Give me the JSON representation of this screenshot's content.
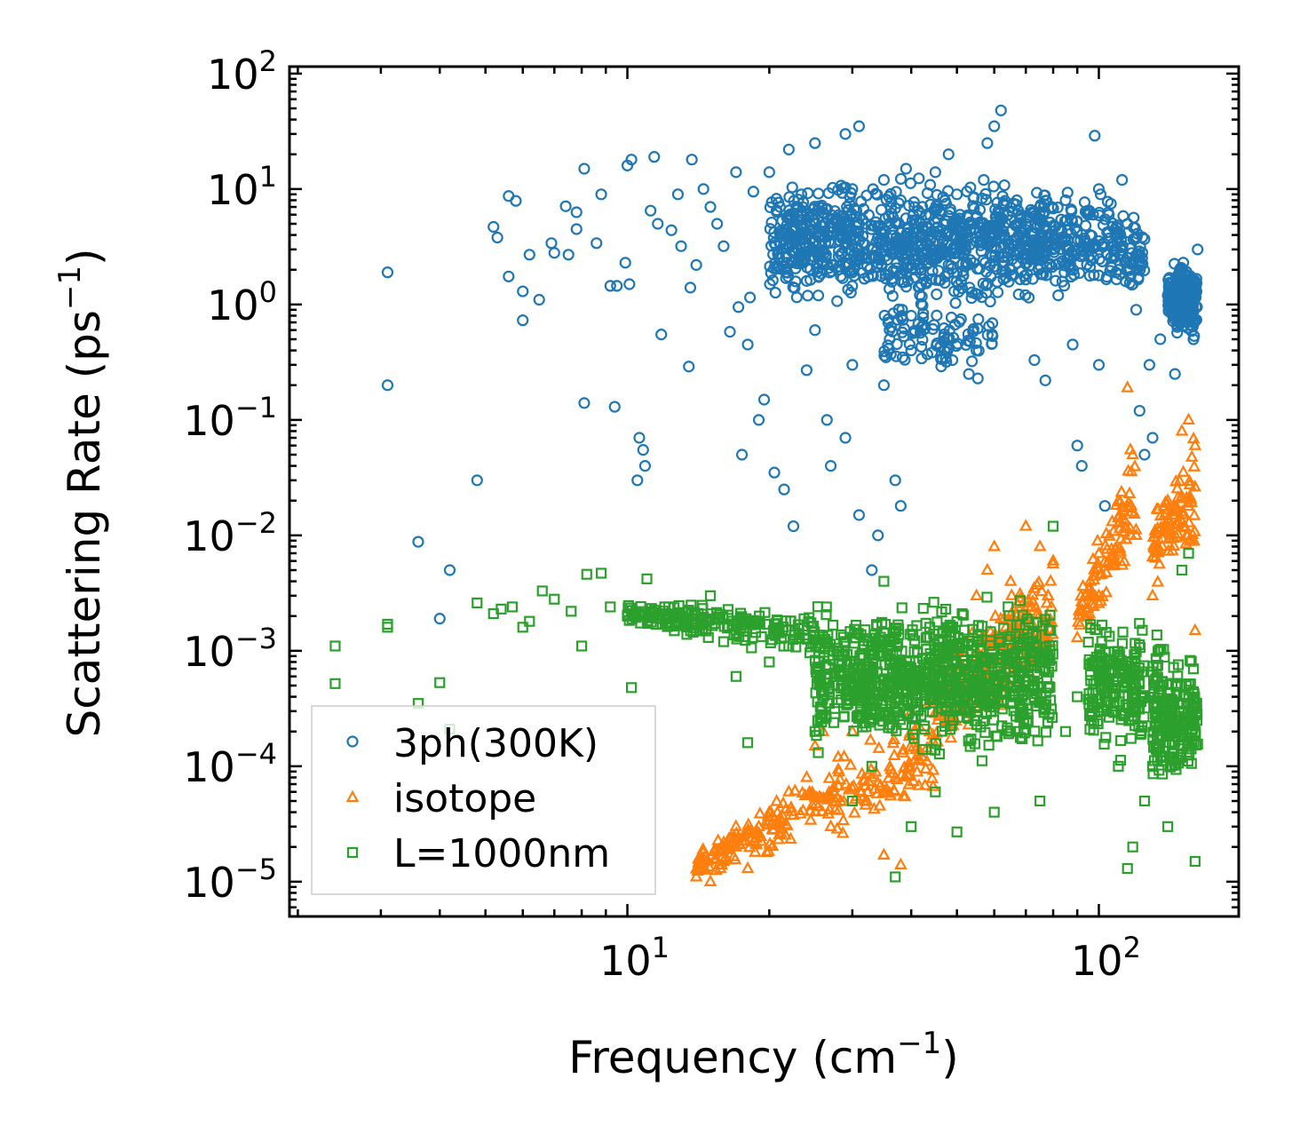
{
  "chart_data": {
    "type": "scatter",
    "xlabel": "Frequency (cm",
    "xlabel_sup": "−1",
    "xlabel_end": ")",
    "ylabel": "Scattering Rate (ps",
    "ylabel_sup": "−1",
    "ylabel_end": ")",
    "xscale": "log",
    "yscale": "log",
    "xlim": [
      1.92,
      198
    ],
    "ylim": [
      5e-06,
      115
    ],
    "xticks": [
      {
        "value": 10,
        "base": "10",
        "exp": "1"
      },
      {
        "value": 100,
        "base": "10",
        "exp": "2"
      }
    ],
    "yticks": [
      {
        "value": 100,
        "base": "10",
        "exp": "2"
      },
      {
        "value": 10,
        "base": "10",
        "exp": "1"
      },
      {
        "value": 1,
        "base": "10",
        "exp": "0"
      },
      {
        "value": 0.1,
        "base": "10",
        "exp": "−1"
      },
      {
        "value": 0.01,
        "base": "10",
        "exp": "−2"
      },
      {
        "value": 0.001,
        "base": "10",
        "exp": "−3"
      },
      {
        "value": 0.0001,
        "base": "10",
        "exp": "−4"
      },
      {
        "value": 1e-05,
        "base": "10",
        "exp": "−5"
      }
    ],
    "legend_position": "lower-left",
    "series": [
      {
        "name": "3ph(300K)",
        "marker": "circle",
        "color": "#1f77b4",
        "points": [
          [
            3.1,
            1.9
          ],
          [
            3.1,
            0.2
          ],
          [
            3.6,
            0.0088
          ],
          [
            4.0,
            0.0019
          ],
          [
            4.2,
            0.005
          ],
          [
            4.8,
            0.03
          ],
          [
            5.2,
            4.7
          ],
          [
            5.3,
            3.8
          ],
          [
            5.6,
            1.75
          ],
          [
            5.6,
            8.7
          ],
          [
            5.8,
            7.9
          ],
          [
            6.0,
            1.3
          ],
          [
            6.0,
            0.73
          ],
          [
            6.2,
            2.7
          ],
          [
            6.5,
            1.1
          ],
          [
            6.9,
            3.4
          ],
          [
            7.0,
            2.8
          ],
          [
            7.4,
            7.1
          ],
          [
            7.5,
            2.7
          ],
          [
            7.8,
            6.3
          ],
          [
            7.8,
            4.5
          ],
          [
            8.1,
            0.14
          ],
          [
            8.1,
            15
          ],
          [
            8.6,
            3.4
          ],
          [
            8.8,
            9.0
          ],
          [
            9.2,
            1.45
          ],
          [
            9.4,
            0.13
          ],
          [
            9.5,
            1.45
          ],
          [
            9.9,
            2.3
          ],
          [
            10.0,
            16
          ],
          [
            10.1,
            1.5
          ],
          [
            10.2,
            18
          ],
          [
            10.5,
            0.03
          ],
          [
            10.6,
            0.07
          ],
          [
            10.8,
            0.055
          ],
          [
            10.9,
            0.04
          ],
          [
            11.2,
            6.5
          ],
          [
            11.4,
            19
          ],
          [
            11.6,
            5.0
          ],
          [
            11.8,
            0.55
          ],
          [
            12.4,
            4.4
          ],
          [
            12.8,
            9
          ],
          [
            13.0,
            3.2
          ],
          [
            13.5,
            0.29
          ],
          [
            13.6,
            1.4
          ],
          [
            13.7,
            18
          ],
          [
            14,
            2.2
          ],
          [
            14.5,
            10
          ],
          [
            15,
            7
          ],
          [
            15.5,
            5
          ],
          [
            16,
            3.2
          ],
          [
            16.5,
            0.58
          ],
          [
            17,
            14
          ],
          [
            17.2,
            0.95
          ],
          [
            17.5,
            0.05
          ],
          [
            18,
            0.45
          ],
          [
            18.2,
            1.15
          ],
          [
            18.5,
            9.5
          ],
          [
            19,
            0.1
          ],
          [
            19.5,
            0.15
          ],
          [
            20,
            14
          ],
          [
            20.5,
            0.035
          ],
          [
            21,
            2.5
          ],
          [
            21.5,
            0.025
          ],
          [
            22,
            22
          ],
          [
            22.5,
            0.012
          ],
          [
            23,
            7
          ],
          [
            24,
            0.27
          ],
          [
            24,
            1.6
          ],
          [
            25,
            0.6
          ],
          [
            25,
            25
          ],
          [
            26,
            4
          ],
          [
            26.5,
            0.1
          ],
          [
            27,
            0.04
          ],
          [
            28,
            2
          ],
          [
            29,
            30
          ],
          [
            29,
            0.07
          ],
          [
            30,
            0.3
          ],
          [
            30,
            10
          ],
          [
            31,
            35
          ],
          [
            31,
            0.015
          ],
          [
            32,
            5
          ],
          [
            33,
            0.005
          ],
          [
            33,
            1.8
          ],
          [
            34,
            0.01
          ],
          [
            35,
            12
          ],
          [
            35,
            0.2
          ],
          [
            36,
            0.5
          ],
          [
            37,
            3
          ],
          [
            37,
            0.03
          ],
          [
            38,
            0.018
          ],
          [
            38,
            8
          ],
          [
            39,
            15
          ],
          [
            40,
            0.4
          ],
          [
            40,
            0.8
          ],
          [
            42,
            1.5
          ],
          [
            43,
            6
          ],
          [
            45,
            14
          ],
          [
            46,
            4
          ],
          [
            48,
            20
          ],
          [
            50,
            9
          ],
          [
            52,
            3
          ],
          [
            53,
            0.25
          ],
          [
            55,
            0.4
          ],
          [
            57,
            12
          ],
          [
            58,
            25
          ],
          [
            60,
            35
          ],
          [
            62,
            48
          ],
          [
            63,
            4
          ],
          [
            65,
            2
          ],
          [
            67,
            8
          ],
          [
            70,
            5
          ],
          [
            73,
            0.33
          ],
          [
            75,
            7
          ],
          [
            77,
            0.22
          ],
          [
            80,
            3
          ],
          [
            82,
            1.2
          ],
          [
            85,
            8
          ],
          [
            88,
            0.45
          ],
          [
            90,
            0.06
          ],
          [
            92,
            0.04
          ],
          [
            95,
            6
          ],
          [
            98,
            29
          ],
          [
            100,
            0.3
          ],
          [
            100,
            10
          ],
          [
            103,
            0.018
          ],
          [
            105,
            6
          ],
          [
            108,
            3
          ],
          [
            110,
            2
          ],
          [
            112,
            12
          ],
          [
            115,
            5
          ],
          [
            118,
            1.5
          ],
          [
            120,
            0.9
          ],
          [
            122,
            0.12
          ],
          [
            125,
            0.05
          ],
          [
            128,
            0.3
          ],
          [
            130,
            0.07
          ],
          [
            135,
            0.5
          ],
          [
            140,
            1.2
          ],
          [
            145,
            0.25
          ],
          [
            150,
            2
          ],
          [
            155,
            0.8
          ],
          [
            160,
            1.5
          ],
          [
            162,
            3
          ]
        ],
        "dense_bands": [
          {
            "x": [
              20,
              80
            ],
            "ylo": [
              0.8,
              0.8
            ],
            "yhi": [
              15,
              15
            ],
            "n": 900
          },
          {
            "x": [
              80,
              125
            ],
            "ylo": [
              1,
              1
            ],
            "yhi": [
              15,
              8
            ],
            "n": 200
          },
          {
            "x": [
              140,
              162
            ],
            "ylo": [
              0.4,
              0.4
            ],
            "yhi": [
              3,
              3
            ],
            "n": 200
          },
          {
            "x": [
              35,
              60
            ],
            "ylo": [
              0.2,
              0.2
            ],
            "yhi": [
              1.5,
              1.5
            ],
            "n": 100
          }
        ]
      },
      {
        "name": "isotope",
        "marker": "triangle",
        "color": "#ff7f0e",
        "points": [
          [
            14,
            1.1e-05
          ],
          [
            15,
            1e-05
          ],
          [
            16,
            1.5e-05
          ],
          [
            17,
            2e-05
          ],
          [
            18,
            1.3e-05
          ],
          [
            19,
            3e-05
          ],
          [
            20,
            4e-05
          ],
          [
            22,
            6e-05
          ],
          [
            24,
            8e-05
          ],
          [
            25,
            0.00015
          ],
          [
            26,
            0.0002
          ],
          [
            27,
            3e-05
          ],
          [
            28,
            0.00012
          ],
          [
            30,
            0.0002
          ],
          [
            32,
            5e-05
          ],
          [
            35,
            1.7e-05
          ],
          [
            38,
            1.4e-05
          ],
          [
            40,
            0.0003
          ],
          [
            45,
            0.0005
          ],
          [
            50,
            0.001
          ],
          [
            55,
            0.003
          ],
          [
            58,
            0.005
          ],
          [
            60,
            0.008
          ],
          [
            65,
            0.004
          ],
          [
            70,
            0.012
          ],
          [
            75,
            0.008
          ],
          [
            80,
            0.006
          ],
          [
            90,
            0.0013
          ],
          [
            100,
            0.003
          ],
          [
            105,
            0.006
          ],
          [
            110,
            0.02
          ],
          [
            115,
            0.19
          ],
          [
            118,
            0.05
          ],
          [
            120,
            0.01
          ],
          [
            130,
            0.003
          ],
          [
            140,
            0.02
          ],
          [
            150,
            0.08
          ],
          [
            155,
            0.1
          ],
          [
            160,
            0.06
          ],
          [
            160,
            0.0015
          ]
        ],
        "dense_bands": [
          {
            "x": [
              14,
              45
            ],
            "ylo": [
              1e-05,
              4e-05
            ],
            "yhi": [
              2e-05,
              0.0005
            ],
            "n": 250
          },
          {
            "x": [
              45,
              80
            ],
            "ylo": [
              0.0001,
              0.0005
            ],
            "yhi": [
              0.001,
              0.01
            ],
            "n": 250
          },
          {
            "x": [
              90,
              120
            ],
            "ylo": [
              0.001,
              0.005
            ],
            "yhi": [
              0.003,
              0.1
            ],
            "n": 100
          },
          {
            "x": [
              130,
              160
            ],
            "ylo": [
              0.003,
              0.005
            ],
            "yhi": [
              0.02,
              0.1
            ],
            "n": 100
          }
        ]
      },
      {
        "name": "L=1000nm",
        "marker": "square",
        "color": "#2ca02c",
        "points": [
          [
            2.4,
            0.0011
          ],
          [
            2.4,
            0.00052
          ],
          [
            3.1,
            0.0017
          ],
          [
            3.1,
            0.0016
          ],
          [
            3.6,
            0.00035
          ],
          [
            4.0,
            0.00053
          ],
          [
            4.2,
            0.00021
          ],
          [
            4.8,
            0.0026
          ],
          [
            5.2,
            0.0021
          ],
          [
            5.4,
            0.0023
          ],
          [
            5.7,
            0.0024
          ],
          [
            6.0,
            0.0016
          ],
          [
            6.2,
            0.0018
          ],
          [
            6.6,
            0.0033
          ],
          [
            7.0,
            0.0028
          ],
          [
            7.6,
            0.0022
          ],
          [
            8.0,
            0.0011
          ],
          [
            8.2,
            0.0046
          ],
          [
            8.8,
            0.0047
          ],
          [
            9.2,
            0.0024
          ],
          [
            10,
            0.002
          ],
          [
            10.2,
            0.00048
          ],
          [
            11,
            0.0042
          ],
          [
            12,
            0.0024
          ],
          [
            13,
            0.002
          ],
          [
            14,
            0.0015
          ],
          [
            15,
            0.003
          ],
          [
            16,
            0.0012
          ],
          [
            17,
            0.0006
          ],
          [
            18,
            0.00016
          ],
          [
            19,
            0.0018
          ],
          [
            20,
            0.0008
          ],
          [
            22,
            0.0011
          ],
          [
            25,
            0.0002
          ],
          [
            28,
            0.0005
          ],
          [
            30,
            5e-05
          ],
          [
            33,
            0.0001
          ],
          [
            35,
            0.004
          ],
          [
            37,
            1.1e-05
          ],
          [
            40,
            3e-05
          ],
          [
            45,
            6e-05
          ],
          [
            50,
            2.7e-05
          ],
          [
            55,
            0.0003
          ],
          [
            60,
            4e-05
          ],
          [
            65,
            0.0002
          ],
          [
            70,
            0.0005
          ],
          [
            75,
            5e-05
          ],
          [
            80,
            0.012
          ],
          [
            85,
            0.0002
          ],
          [
            90,
            0.0004
          ],
          [
            100,
            0.0003
          ],
          [
            110,
            0.0001
          ],
          [
            115,
            1.3e-05
          ],
          [
            118,
            2e-05
          ],
          [
            125,
            5e-05
          ],
          [
            130,
            0.0001
          ],
          [
            140,
            3e-05
          ],
          [
            150,
            0.005
          ],
          [
            155,
            0.007
          ],
          [
            160,
            1.5e-05
          ],
          [
            160,
            0.0002
          ]
        ],
        "dense_bands": [
          {
            "x": [
              10,
              25
            ],
            "ylo": [
              0.0015,
              0.0008
            ],
            "yhi": [
              0.003,
              0.0025
            ],
            "n": 200
          },
          {
            "x": [
              25,
              80
            ],
            "ylo": [
              0.0001,
              0.0001
            ],
            "yhi": [
              0.003,
              0.004
            ],
            "n": 900
          },
          {
            "x": [
              95,
              125
            ],
            "ylo": [
              0.0001,
              0.0001
            ],
            "yhi": [
              0.003,
              0.002
            ],
            "n": 200
          },
          {
            "x": [
              130,
              162
            ],
            "ylo": [
              5e-05,
              5e-05
            ],
            "yhi": [
              0.002,
              0.001
            ],
            "n": 200
          }
        ]
      }
    ]
  }
}
